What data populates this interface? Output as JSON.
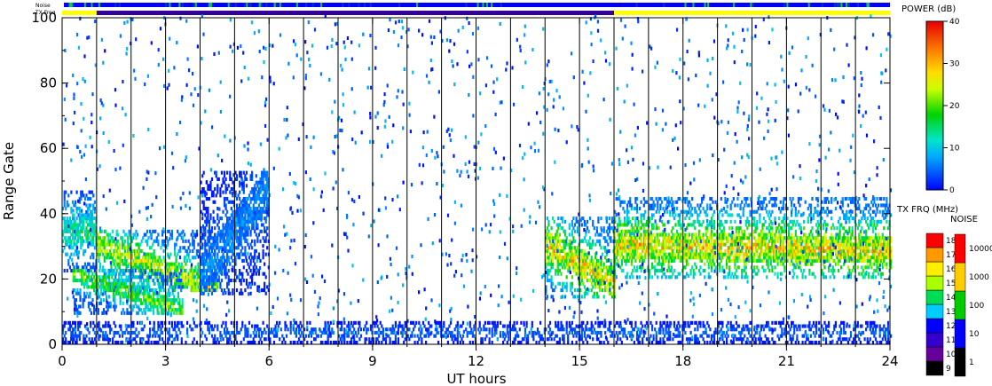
{
  "chart_data": {
    "type": "heatmap",
    "xlabel": "UT hours",
    "ylabel": "Range Gate",
    "xlim": [
      0,
      24
    ],
    "ylim": [
      0,
      100
    ],
    "xticks": [
      "0",
      "3",
      "6",
      "9",
      "12",
      "15",
      "18",
      "21",
      "24"
    ],
    "yticks": [
      "0",
      "20",
      "40",
      "60",
      "80",
      "100"
    ],
    "scan_boundaries_ut": [
      1,
      2,
      3,
      4,
      5,
      6,
      7,
      8,
      9,
      10,
      11,
      12,
      13,
      14,
      15,
      16,
      17,
      18,
      19,
      20,
      21,
      22,
      23
    ],
    "status_bars": {
      "noise_label": "Noise",
      "txfreq_label": "TX Freq",
      "txfreq_segments": [
        {
          "from": 0,
          "to": 1,
          "color": "#ffff00"
        },
        {
          "from": 1,
          "to": 16,
          "color": "#330099"
        },
        {
          "from": 16,
          "to": 24,
          "color": "#ffff00"
        }
      ]
    },
    "echo_regions": [
      {
        "from": 0.0,
        "to": 1.0,
        "gate_lo": 22,
        "gate_hi": 46,
        "peak_db": 18
      },
      {
        "from": 1.0,
        "to": 4.5,
        "gate_lo": 16,
        "gate_hi": 34,
        "start_gate": 30,
        "end_gate": 16,
        "peak_db": 30
      },
      {
        "from": 0.3,
        "to": 3.5,
        "gate_lo": 9,
        "gate_hi": 22,
        "start_gate": 21,
        "end_gate": 10,
        "peak_db": 25
      },
      {
        "from": 4.0,
        "to": 6.0,
        "gate_lo": 15,
        "gate_hi": 52,
        "start_gate": 20,
        "end_gate": 48,
        "peak_db": 8
      },
      {
        "from": 14.0,
        "to": 16.0,
        "gate_lo": 14,
        "gate_hi": 38,
        "start_gate": 30,
        "end_gate": 18,
        "peak_db": 34
      },
      {
        "from": 16.0,
        "to": 24.0,
        "gate_lo": 20,
        "gate_hi": 44,
        "start_gate": 30,
        "end_gate": 28,
        "peak_db": 34
      },
      {
        "from": 0.0,
        "to": 24.0,
        "gate_lo": 0,
        "gate_hi": 6,
        "peak_db": 6
      }
    ],
    "power_scale": {
      "title": "POWER (dB)",
      "min": 0,
      "max": 40,
      "ticks": [
        "0",
        "10",
        "20",
        "30",
        "40"
      ]
    },
    "txfreq_scale": {
      "title": "TX FRQ (MHz)",
      "ticks": [
        "9",
        "10",
        "11",
        "12",
        "13",
        "14",
        "15",
        "16",
        "17",
        "18"
      ]
    },
    "noise_scale": {
      "title": "NOISE",
      "ticks": [
        "1",
        "10",
        "100",
        "1000",
        "10000"
      ]
    }
  }
}
